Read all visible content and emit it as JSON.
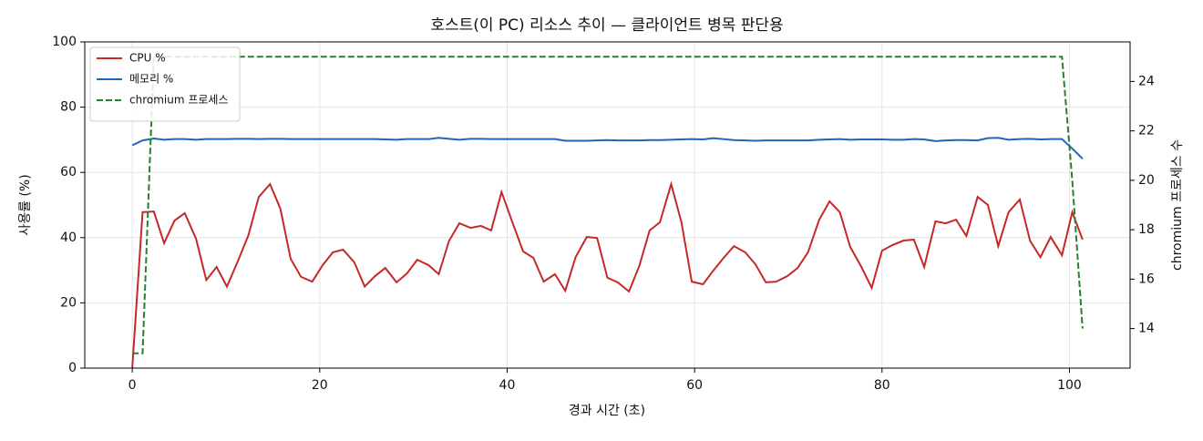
{
  "chart_data": {
    "type": "line",
    "title": "호스트(이 PC) 리소스 추이 — 클라이언트 병목 판단용",
    "xlabel": "경과 시간 (초)",
    "ylabel": "사용률 (%)",
    "y2label": "chromium 프로세스 수",
    "x": [
      0,
      1.1,
      2.3,
      3.4,
      4.5,
      5.6,
      6.8,
      7.9,
      9.0,
      10.1,
      11.3,
      12.4,
      13.5,
      14.7,
      15.8,
      16.9,
      18.0,
      19.2,
      20.3,
      21.4,
      22.5,
      23.7,
      24.8,
      25.9,
      27.0,
      28.2,
      29.3,
      30.4,
      31.6,
      32.7,
      33.8,
      34.9,
      36.1,
      37.2,
      38.3,
      39.4,
      40.6,
      41.7,
      42.8,
      43.9,
      45.1,
      46.2,
      47.3,
      48.5,
      49.6,
      50.7,
      51.8,
      53.0,
      54.1,
      55.2,
      56.3,
      57.5,
      58.6,
      59.7,
      60.9,
      62.0,
      63.1,
      64.2,
      65.4,
      66.5,
      67.6,
      68.7,
      69.9,
      71.0,
      72.1,
      73.3,
      74.4,
      75.5,
      76.6,
      77.8,
      78.9,
      80.0,
      81.1,
      82.3,
      83.4,
      84.5,
      85.7,
      86.8,
      87.9,
      89.0,
      90.2,
      91.3,
      92.4,
      93.5,
      94.7,
      95.8,
      96.9,
      98.0,
      99.2,
      100.3,
      101.4
    ],
    "series": [
      {
        "name": "CPU %",
        "color": "#c62828",
        "linestyle": "solid",
        "axis": "y",
        "values": [
          0,
          47.8,
          48,
          38.3,
          45.2,
          47.5,
          39.7,
          27,
          31,
          25,
          33,
          40.8,
          52.5,
          56.4,
          48.9,
          33.5,
          28,
          26.5,
          31.5,
          35.5,
          36.3,
          32.4,
          25,
          28.2,
          30.7,
          26.3,
          29,
          33.2,
          31.6,
          28.8,
          39,
          44.4,
          43,
          43.6,
          42.2,
          54,
          44.4,
          35.8,
          33.8,
          26.5,
          28.8,
          23.7,
          34,
          40.2,
          39.9,
          27.7,
          26.3,
          23.5,
          31.3,
          42.2,
          44.7,
          56.4,
          44.7,
          26.5,
          25.7,
          29.9,
          33.8,
          37.4,
          35.5,
          31.8,
          26.3,
          26.5,
          28.2,
          30.7,
          35.5,
          45.5,
          51.1,
          47.8,
          37.2,
          31,
          24.6,
          36,
          37.7,
          39.1,
          39.4,
          31,
          45,
          44.4,
          45.5,
          40.5,
          52.5,
          50,
          37.4,
          47.8,
          51.7,
          39,
          34,
          40.2,
          34.6,
          47.8,
          39.4
        ]
      },
      {
        "name": "메모리 %",
        "color": "#1f66b8",
        "linestyle": "solid",
        "axis": "y",
        "values": [
          68.3,
          69.8,
          70.4,
          70.0,
          70.2,
          70.2,
          70.0,
          70.2,
          70.2,
          70.2,
          70.3,
          70.3,
          70.2,
          70.3,
          70.3,
          70.2,
          70.2,
          70.2,
          70.2,
          70.2,
          70.2,
          70.2,
          70.2,
          70.2,
          70.1,
          70.0,
          70.2,
          70.2,
          70.2,
          70.6,
          70.3,
          70.0,
          70.3,
          70.3,
          70.2,
          70.2,
          70.2,
          70.2,
          70.2,
          70.2,
          70.2,
          69.7,
          69.7,
          69.7,
          69.8,
          69.9,
          69.8,
          69.8,
          69.8,
          69.9,
          69.9,
          70.0,
          70.1,
          70.2,
          70.1,
          70.5,
          70.2,
          69.9,
          69.8,
          69.7,
          69.8,
          69.8,
          69.8,
          69.8,
          69.8,
          70.0,
          70.1,
          70.2,
          70.0,
          70.1,
          70.1,
          70.1,
          70.0,
          70.0,
          70.2,
          70.1,
          69.6,
          69.8,
          69.9,
          69.9,
          69.8,
          70.5,
          70.6,
          70.0,
          70.2,
          70.3,
          70.1,
          70.2,
          70.2,
          67.3,
          64.2
        ]
      },
      {
        "name": "chromium 프로세스",
        "color": "#2e7d32",
        "linestyle": "dashed",
        "axis": "y2",
        "values": [
          13,
          13,
          25,
          25,
          25,
          25,
          25,
          25,
          25,
          25,
          25,
          25,
          25,
          25,
          25,
          25,
          25,
          25,
          25,
          25,
          25,
          25,
          25,
          25,
          25,
          25,
          25,
          25,
          25,
          25,
          25,
          25,
          25,
          25,
          25,
          25,
          25,
          25,
          25,
          25,
          25,
          25,
          25,
          25,
          25,
          25,
          25,
          25,
          25,
          25,
          25,
          25,
          25,
          25,
          25,
          25,
          25,
          25,
          25,
          25,
          25,
          25,
          25,
          25,
          25,
          25,
          25,
          25,
          25,
          25,
          25,
          25,
          25,
          25,
          25,
          25,
          25,
          25,
          25,
          25,
          25,
          25,
          25,
          25,
          25,
          25,
          25,
          25,
          25,
          20,
          14
        ]
      }
    ],
    "xlim": [
      -5.07,
      106.47
    ],
    "xticks": [
      0,
      20,
      40,
      60,
      80,
      100
    ],
    "ylim": [
      0,
      100
    ],
    "yticks": [
      0,
      20,
      40,
      60,
      80,
      100
    ],
    "y2lim": [
      12.4,
      25.6
    ],
    "y2ticks": [
      14,
      16,
      18,
      20,
      22,
      24
    ],
    "grid": true,
    "legend": "upper left"
  }
}
